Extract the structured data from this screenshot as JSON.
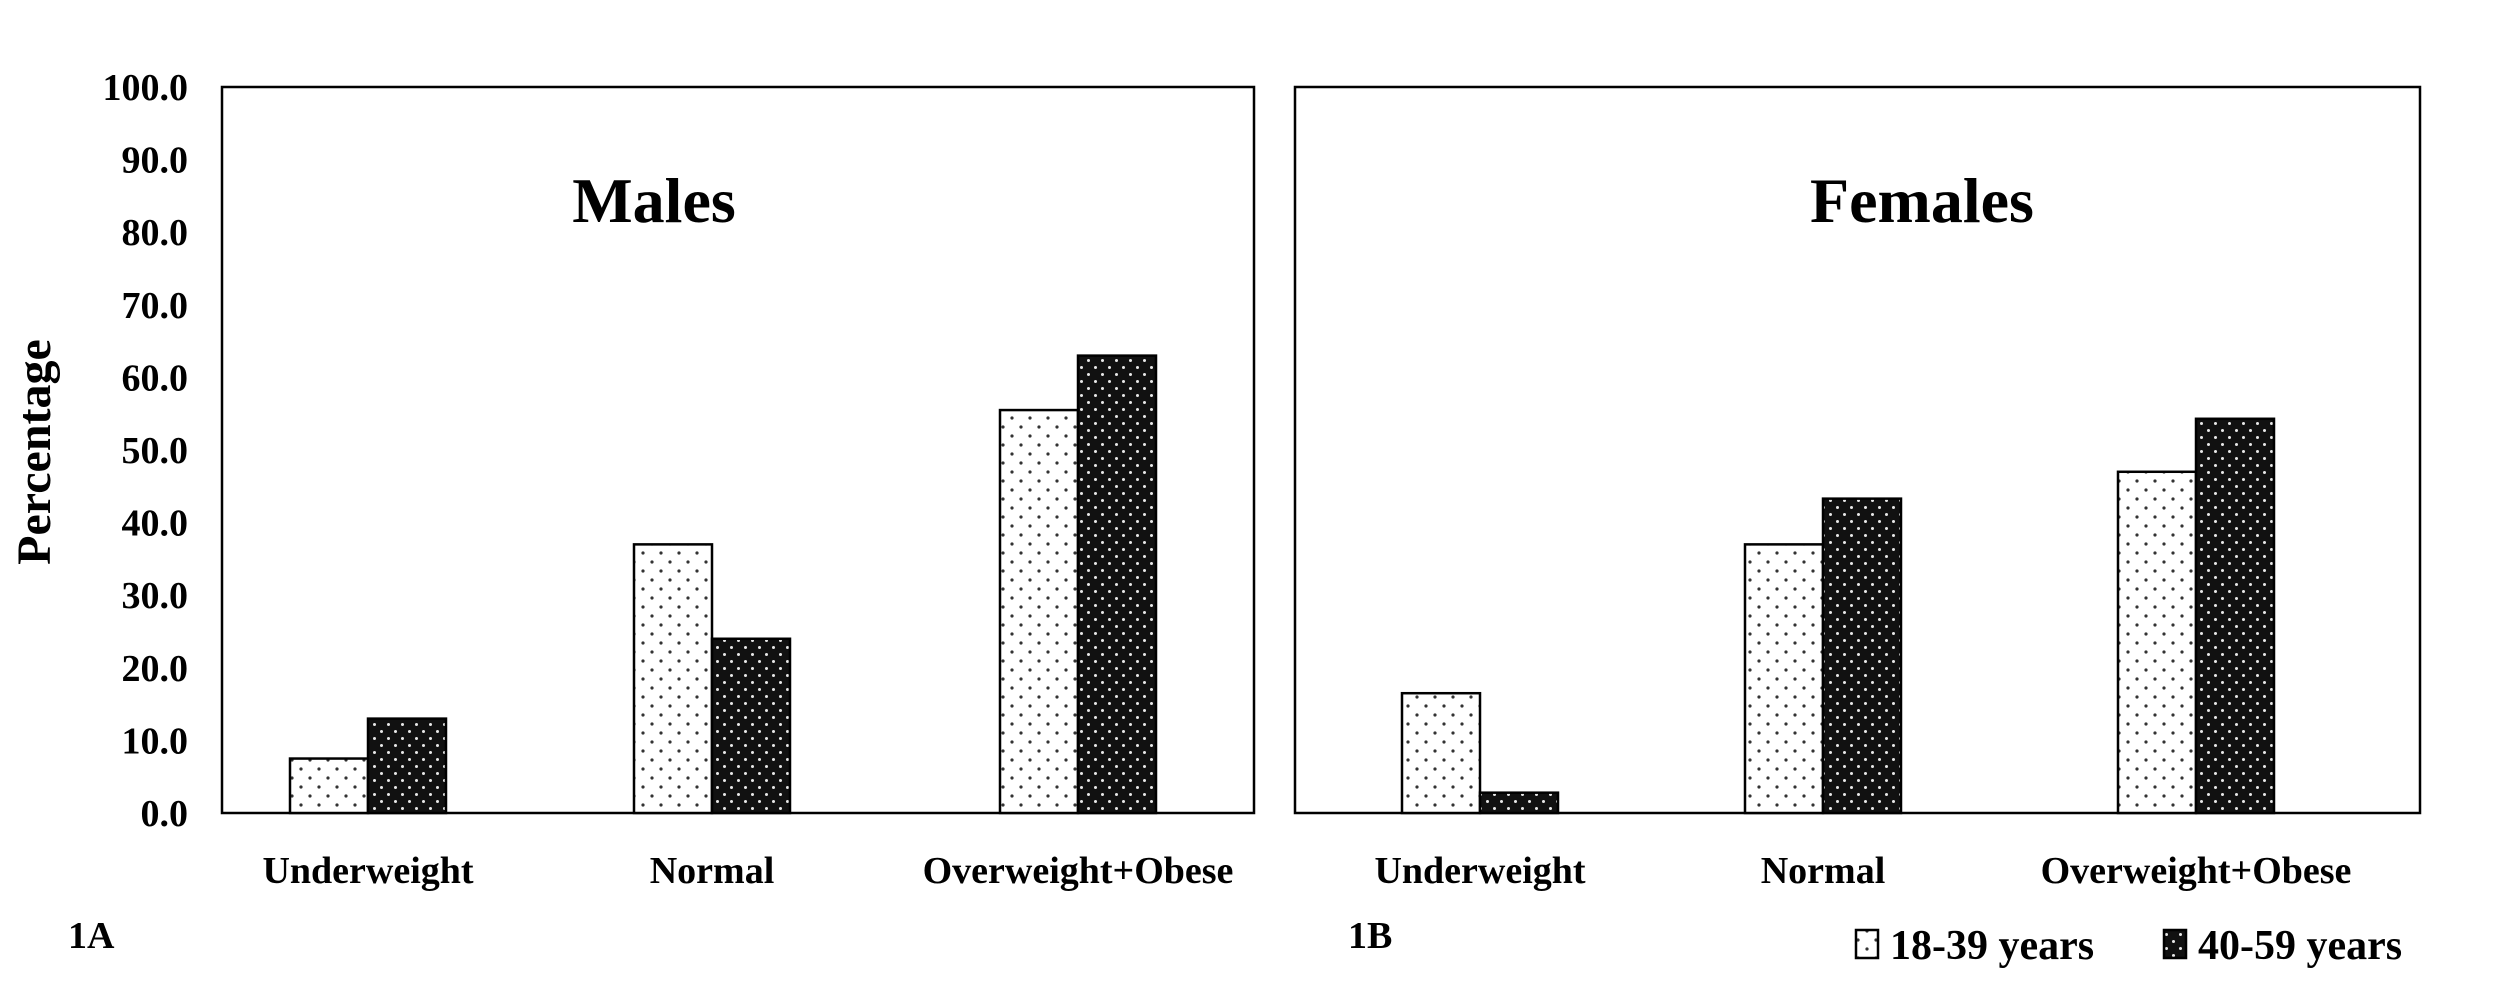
{
  "ylabel": "Percentage",
  "yticks": [
    "0.0",
    "10.0",
    "20.0",
    "30.0",
    "40.0",
    "50.0",
    "60.0",
    "70.0",
    "80.0",
    "90.0",
    "100.0"
  ],
  "legend": [
    {
      "name": "18-39 years",
      "color": "#ffffff",
      "pattern": "dots-on-white"
    },
    {
      "name": "40-59 years",
      "color": "#111111",
      "pattern": "dots-on-black"
    }
  ],
  "chart_data": [
    {
      "type": "bar",
      "panel": "1A",
      "title": "Males",
      "categories": [
        "Underweight",
        "Normal",
        "Overweight+Obese"
      ],
      "series": [
        {
          "name": "18-39 years",
          "values": [
            7.5,
            37.0,
            55.5
          ]
        },
        {
          "name": "40-59 years",
          "values": [
            13.0,
            24.0,
            63.0
          ]
        }
      ],
      "ylabel": "Percentage",
      "ylim": [
        0,
        100
      ],
      "grid": false,
      "legend_position": "bottom-right"
    },
    {
      "type": "bar",
      "panel": "1B",
      "title": "Females",
      "categories": [
        "Underweight",
        "Normal",
        "Overweight+Obese"
      ],
      "series": [
        {
          "name": "18-39 years",
          "values": [
            16.5,
            37.0,
            47.0
          ]
        },
        {
          "name": "40-59 years",
          "values": [
            2.8,
            43.3,
            54.3
          ]
        }
      ],
      "ylabel": "Percentage",
      "ylim": [
        0,
        100
      ],
      "grid": false,
      "legend_position": "bottom-right"
    }
  ]
}
